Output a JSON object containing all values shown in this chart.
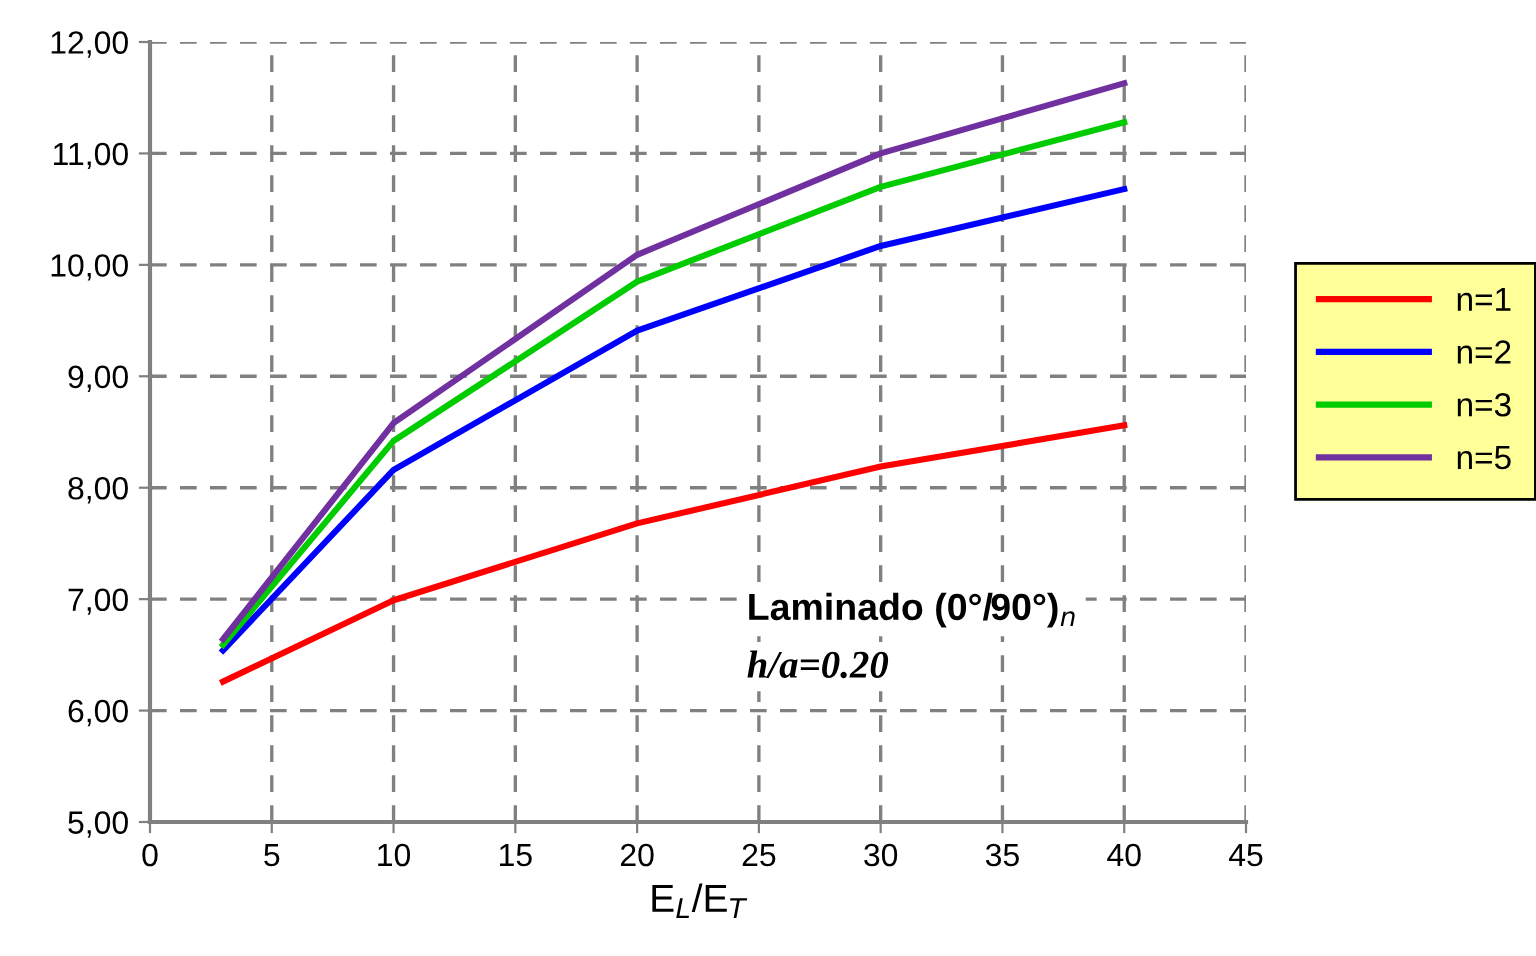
{
  "chart_data": {
    "type": "line",
    "xlabel": "E$_{L}$/E$_{T}$",
    "x": [
      3,
      10,
      20,
      30,
      40
    ],
    "series": [
      {
        "name": "n=1",
        "color": "#ff0000",
        "values": [
          6.26,
          6.99,
          7.68,
          8.19,
          8.56
        ]
      },
      {
        "name": "n=2",
        "color": "#0000ff",
        "values": [
          6.54,
          8.16,
          9.41,
          10.17,
          10.68
        ]
      },
      {
        "name": "n=3",
        "color": "#00cc00",
        "values": [
          6.59,
          8.42,
          9.85,
          10.7,
          11.28
        ]
      },
      {
        "name": "n=5",
        "color": "#7030a0",
        "values": [
          6.64,
          8.58,
          10.09,
          11.0,
          11.63
        ]
      }
    ],
    "xlim": [
      0,
      45
    ],
    "xticks": [
      0,
      5,
      10,
      15,
      20,
      25,
      30,
      35,
      40,
      45
    ],
    "ylim": [
      5,
      12
    ],
    "yticks": [
      {
        "value": 5,
        "label": "5,00"
      },
      {
        "value": 6,
        "label": "6,00"
      },
      {
        "value": 7,
        "label": "7,00"
      },
      {
        "value": 8,
        "label": "8,00"
      },
      {
        "value": 9,
        "label": "9,00"
      },
      {
        "value": 10,
        "label": "10,00"
      },
      {
        "value": 11,
        "label": "11,00"
      },
      {
        "value": 12,
        "label": "12,00"
      }
    ],
    "annotations": [
      "Laminado (0°/90°)$_{n}$",
      "h/a=0.20"
    ],
    "grid": true,
    "legend": "right",
    "marker": "none",
    "line_style": "solid"
  }
}
